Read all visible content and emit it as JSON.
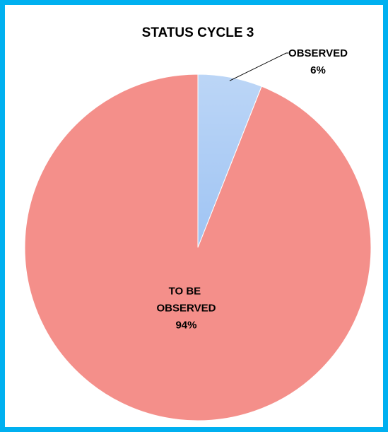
{
  "chart_data": {
    "type": "pie",
    "title": "STATUS CYCLE 3",
    "categories": [
      "OBSERVED",
      "TO BE OBSERVED"
    ],
    "values": [
      6,
      94
    ],
    "value_labels": [
      "6%",
      "94%"
    ],
    "colors": [
      "#9fc4f3",
      "#f48f8a"
    ]
  }
}
